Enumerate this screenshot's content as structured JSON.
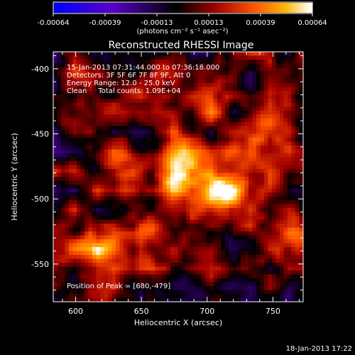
{
  "chart_data": {
    "type": "heatmap",
    "title": "Reconstructed RHESSI Image",
    "xlabel": "Heliocentric X (arcsec)",
    "ylabel": "Heliocentric Y (arcsec)",
    "xlim": [
      583,
      773
    ],
    "ylim": [
      -579,
      -387
    ],
    "x_ticks": [
      600,
      650,
      700,
      750
    ],
    "y_ticks": [
      -400,
      -450,
      -500,
      -550
    ],
    "colorbar": {
      "ticks": [
        "-0.00064",
        "-0.00039",
        "-0.00013",
        "0.00013",
        "0.00039",
        "0.00064"
      ],
      "unit_label": "(photons cm⁻² s⁻¹ asec⁻²)",
      "range": [
        -0.00064,
        0.00064
      ],
      "colors": [
        "#0000ff",
        "#5a00c8",
        "#000000",
        "#a00000",
        "#ff5000",
        "#ffb400",
        "#ffffff"
      ]
    },
    "annotations": [
      "15-Jan-2013 07:31:44.000 to 07:36:18.000",
      "Detectors: 3F 5F 6F 7F 8F 9F, Att 0",
      "Energy Range: 12.0 - 25.0 keV",
      "Clean     Total counts: 1.09E+04"
    ],
    "peak_label": "Position of Peak = [680,-479]",
    "peak": [
      680,
      -479
    ],
    "sources": [
      {
        "x": 680,
        "y": -479,
        "intensity": 1.0
      },
      {
        "x": 715,
        "y": -496,
        "intensity": 0.75
      },
      {
        "x": 612,
        "y": -541,
        "intensity": 0.55
      },
      {
        "x": 650,
        "y": -523,
        "intensity": 0.5
      },
      {
        "x": 630,
        "y": -470,
        "intensity": 0.45
      },
      {
        "x": 740,
        "y": -450,
        "intensity": 0.35
      },
      {
        "x": 760,
        "y": -520,
        "intensity": 0.3
      },
      {
        "x": 600,
        "y": -420,
        "intensity": 0.3
      },
      {
        "x": 700,
        "y": -430,
        "intensity": 0.35
      }
    ]
  },
  "footer": {
    "date": "18-Jan-2013 17:22"
  }
}
